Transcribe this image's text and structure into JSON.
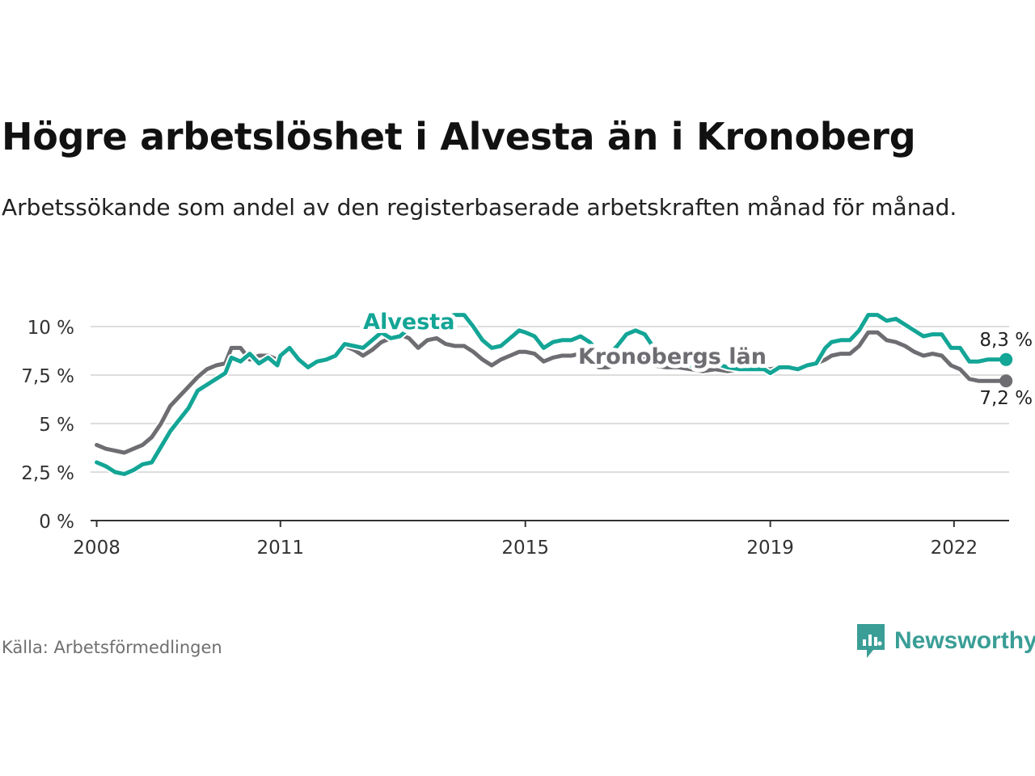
{
  "header": {
    "title": "Högre arbetslöshet i Alvesta än i Kronoberg",
    "subtitle": "Arbetssökande som andel av den registerbaserade arbetskraften månad för månad."
  },
  "footer": {
    "source": "Källa: Arbetsförmedlingen",
    "brand": "Newsworthy"
  },
  "colors": {
    "alvesta": "#13a596",
    "kronoberg": "#6d6d72",
    "grid": "#dddddd",
    "axis": "#333333",
    "brand": "#3a9e96"
  },
  "chart_data": {
    "type": "line",
    "title": "Högre arbetslöshet i Alvesta än i Kronoberg",
    "ylim": [
      0,
      11
    ],
    "yticks": [
      0,
      2.5,
      5,
      7.5,
      10
    ],
    "ytick_labels": [
      "0 %",
      "2,5 %",
      "5 %",
      "7,5 %",
      "10 %"
    ],
    "xlim": [
      2007.9,
      2022.9
    ],
    "xticks": [
      2008,
      2011,
      2015,
      2019,
      2022
    ],
    "xtick_labels": [
      "2008",
      "2011",
      "2015",
      "2019",
      "2022"
    ],
    "grid": true,
    "series": [
      {
        "name": "Alvesta",
        "color": "#13a596",
        "end_label": "8,3 %",
        "points": [
          [
            2008.0,
            3.0
          ],
          [
            2008.15,
            2.8
          ],
          [
            2008.3,
            2.5
          ],
          [
            2008.45,
            2.4
          ],
          [
            2008.6,
            2.6
          ],
          [
            2008.75,
            2.9
          ],
          [
            2008.9,
            3.0
          ],
          [
            2009.05,
            3.8
          ],
          [
            2009.2,
            4.6
          ],
          [
            2009.35,
            5.2
          ],
          [
            2009.5,
            5.8
          ],
          [
            2009.65,
            6.7
          ],
          [
            2009.8,
            7.0
          ],
          [
            2009.95,
            7.3
          ],
          [
            2010.1,
            7.6
          ],
          [
            2010.2,
            8.4
          ],
          [
            2010.35,
            8.2
          ],
          [
            2010.5,
            8.6
          ],
          [
            2010.65,
            8.1
          ],
          [
            2010.8,
            8.4
          ],
          [
            2010.95,
            8.0
          ],
          [
            2011.0,
            8.5
          ],
          [
            2011.15,
            8.9
          ],
          [
            2011.3,
            8.3
          ],
          [
            2011.45,
            7.9
          ],
          [
            2011.6,
            8.2
          ],
          [
            2011.75,
            8.3
          ],
          [
            2011.9,
            8.5
          ],
          [
            2012.05,
            9.1
          ],
          [
            2012.2,
            9.0
          ],
          [
            2012.35,
            8.9
          ],
          [
            2012.5,
            9.3
          ],
          [
            2012.65,
            9.7
          ],
          [
            2012.8,
            9.4
          ],
          [
            2012.95,
            9.5
          ],
          [
            2013.1,
            9.9
          ],
          [
            2013.25,
            10.2
          ],
          [
            2013.4,
            10.5
          ],
          [
            2013.55,
            10.4
          ],
          [
            2013.7,
            10.5
          ],
          [
            2013.85,
            10.6
          ],
          [
            2014.0,
            10.6
          ],
          [
            2014.15,
            10.0
          ],
          [
            2014.3,
            9.3
          ],
          [
            2014.45,
            8.9
          ],
          [
            2014.6,
            9.0
          ],
          [
            2014.75,
            9.4
          ],
          [
            2014.9,
            9.8
          ],
          [
            2015.0,
            9.7
          ],
          [
            2015.15,
            9.5
          ],
          [
            2015.3,
            8.9
          ],
          [
            2015.45,
            9.2
          ],
          [
            2015.6,
            9.3
          ],
          [
            2015.75,
            9.3
          ],
          [
            2015.9,
            9.5
          ],
          [
            2016.05,
            9.2
          ],
          [
            2016.2,
            8.7
          ],
          [
            2016.35,
            8.5
          ],
          [
            2016.5,
            9.0
          ],
          [
            2016.65,
            9.6
          ],
          [
            2016.8,
            9.8
          ],
          [
            2016.95,
            9.6
          ],
          [
            2017.1,
            8.9
          ],
          [
            2017.3,
            8.6
          ],
          [
            2017.5,
            8.3
          ],
          [
            2017.7,
            8.0
          ],
          [
            2017.9,
            8.0
          ],
          [
            2018.1,
            8.1
          ],
          [
            2018.3,
            7.9
          ],
          [
            2018.5,
            7.8
          ],
          [
            2018.7,
            7.8
          ],
          [
            2018.9,
            7.8
          ],
          [
            2019.0,
            7.6
          ],
          [
            2019.15,
            7.9
          ],
          [
            2019.3,
            7.9
          ],
          [
            2019.45,
            7.8
          ],
          [
            2019.6,
            8.0
          ],
          [
            2019.75,
            8.1
          ],
          [
            2019.9,
            8.9
          ],
          [
            2020.0,
            9.2
          ],
          [
            2020.15,
            9.3
          ],
          [
            2020.3,
            9.3
          ],
          [
            2020.45,
            9.8
          ],
          [
            2020.6,
            10.6
          ],
          [
            2020.75,
            10.6
          ],
          [
            2020.9,
            10.3
          ],
          [
            2021.05,
            10.4
          ],
          [
            2021.2,
            10.1
          ],
          [
            2021.35,
            9.8
          ],
          [
            2021.5,
            9.5
          ],
          [
            2021.65,
            9.6
          ],
          [
            2021.8,
            9.6
          ],
          [
            2021.95,
            8.9
          ],
          [
            2022.1,
            8.9
          ],
          [
            2022.25,
            8.2
          ],
          [
            2022.4,
            8.2
          ],
          [
            2022.55,
            8.3
          ],
          [
            2022.7,
            8.3
          ],
          [
            2022.85,
            8.3
          ]
        ]
      },
      {
        "name": "Kronobergs län",
        "color": "#6d6d72",
        "end_label": "7,2 %",
        "points": [
          [
            2008.0,
            3.9
          ],
          [
            2008.15,
            3.7
          ],
          [
            2008.3,
            3.6
          ],
          [
            2008.45,
            3.5
          ],
          [
            2008.6,
            3.7
          ],
          [
            2008.75,
            3.9
          ],
          [
            2008.9,
            4.3
          ],
          [
            2009.05,
            5.0
          ],
          [
            2009.2,
            5.9
          ],
          [
            2009.35,
            6.4
          ],
          [
            2009.5,
            6.9
          ],
          [
            2009.65,
            7.4
          ],
          [
            2009.8,
            7.8
          ],
          [
            2009.95,
            8.0
          ],
          [
            2010.1,
            8.1
          ],
          [
            2010.2,
            8.9
          ],
          [
            2010.35,
            8.9
          ],
          [
            2010.5,
            8.3
          ],
          [
            2010.65,
            8.5
          ],
          [
            2010.8,
            8.5
          ],
          [
            2010.95,
            8.3
          ],
          [
            2011.0,
            8.5
          ],
          [
            2011.15,
            8.8
          ],
          [
            2011.3,
            8.3
          ],
          [
            2011.45,
            7.9
          ],
          [
            2011.6,
            8.2
          ],
          [
            2011.75,
            8.3
          ],
          [
            2011.9,
            8.5
          ],
          [
            2012.05,
            9.0
          ],
          [
            2012.2,
            8.8
          ],
          [
            2012.35,
            8.5
          ],
          [
            2012.5,
            8.8
          ],
          [
            2012.65,
            9.2
          ],
          [
            2012.8,
            9.4
          ],
          [
            2012.95,
            9.6
          ],
          [
            2013.1,
            9.4
          ],
          [
            2013.25,
            8.9
          ],
          [
            2013.4,
            9.3
          ],
          [
            2013.55,
            9.4
          ],
          [
            2013.7,
            9.1
          ],
          [
            2013.85,
            9.0
          ],
          [
            2014.0,
            9.0
          ],
          [
            2014.15,
            8.7
          ],
          [
            2014.3,
            8.3
          ],
          [
            2014.45,
            8.0
          ],
          [
            2014.6,
            8.3
          ],
          [
            2014.75,
            8.5
          ],
          [
            2014.9,
            8.7
          ],
          [
            2015.0,
            8.7
          ],
          [
            2015.15,
            8.6
          ],
          [
            2015.3,
            8.2
          ],
          [
            2015.45,
            8.4
          ],
          [
            2015.6,
            8.5
          ],
          [
            2015.75,
            8.5
          ],
          [
            2015.9,
            8.6
          ],
          [
            2016.05,
            8.3
          ],
          [
            2016.2,
            7.9
          ],
          [
            2016.35,
            7.9
          ],
          [
            2016.5,
            8.1
          ],
          [
            2016.65,
            8.3
          ],
          [
            2016.8,
            8.4
          ],
          [
            2016.95,
            8.3
          ],
          [
            2017.1,
            8.0
          ],
          [
            2017.3,
            7.9
          ],
          [
            2017.5,
            7.9
          ],
          [
            2017.7,
            7.8
          ],
          [
            2017.9,
            7.7
          ],
          [
            2018.1,
            7.8
          ],
          [
            2018.3,
            7.7
          ],
          [
            2018.5,
            7.8
          ],
          [
            2018.7,
            7.8
          ],
          [
            2018.9,
            7.8
          ],
          [
            2019.0,
            7.8
          ],
          [
            2019.15,
            7.9
          ],
          [
            2019.3,
            7.9
          ],
          [
            2019.45,
            7.9
          ],
          [
            2019.6,
            8.0
          ],
          [
            2019.75,
            8.1
          ],
          [
            2019.9,
            8.3
          ],
          [
            2020.0,
            8.5
          ],
          [
            2020.15,
            8.6
          ],
          [
            2020.3,
            8.6
          ],
          [
            2020.45,
            9.0
          ],
          [
            2020.6,
            9.7
          ],
          [
            2020.75,
            9.7
          ],
          [
            2020.9,
            9.3
          ],
          [
            2021.05,
            9.2
          ],
          [
            2021.2,
            9.0
          ],
          [
            2021.35,
            8.7
          ],
          [
            2021.5,
            8.5
          ],
          [
            2021.65,
            8.6
          ],
          [
            2021.8,
            8.5
          ],
          [
            2021.95,
            8.0
          ],
          [
            2022.1,
            7.8
          ],
          [
            2022.25,
            7.3
          ],
          [
            2022.4,
            7.2
          ],
          [
            2022.55,
            7.2
          ],
          [
            2022.7,
            7.2
          ],
          [
            2022.85,
            7.2
          ]
        ]
      }
    ]
  }
}
